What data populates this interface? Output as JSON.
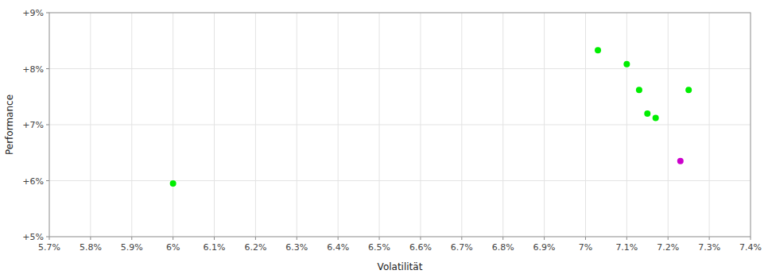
{
  "chart_data": {
    "type": "scatter",
    "x_label": "Volatilität",
    "y_label": "Performance",
    "xlim": [
      0.057,
      0.074
    ],
    "ylim": [
      0.05,
      0.09
    ],
    "xticks": [
      {
        "value": 0.057,
        "label": "5.7%"
      },
      {
        "value": 0.058,
        "label": "5.8%"
      },
      {
        "value": 0.059,
        "label": "5.9%"
      },
      {
        "value": 0.06,
        "label": "6%"
      },
      {
        "value": 0.061,
        "label": "6.1%"
      },
      {
        "value": 0.062,
        "label": "6.2%"
      },
      {
        "value": 0.063,
        "label": "6.3%"
      },
      {
        "value": 0.064,
        "label": "6.4%"
      },
      {
        "value": 0.065,
        "label": "6.5%"
      },
      {
        "value": 0.066,
        "label": "6.6%"
      },
      {
        "value": 0.067,
        "label": "6.7%"
      },
      {
        "value": 0.068,
        "label": "6.8%"
      },
      {
        "value": 0.069,
        "label": "6.9%"
      },
      {
        "value": 0.07,
        "label": "7%"
      },
      {
        "value": 0.071,
        "label": "7.1%"
      },
      {
        "value": 0.072,
        "label": "7.2%"
      },
      {
        "value": 0.073,
        "label": "7.3%"
      },
      {
        "value": 0.074,
        "label": "7.4%"
      }
    ],
    "yticks": [
      {
        "value": 0.05,
        "label": "+5%"
      },
      {
        "value": 0.06,
        "label": "+6%"
      },
      {
        "value": 0.07,
        "label": "+7%"
      },
      {
        "value": 0.08,
        "label": "+8%"
      },
      {
        "value": 0.09,
        "label": "+9%"
      }
    ],
    "grid": true,
    "series": [
      {
        "color": "#00ee00",
        "x": [
          0.06,
          0.0703,
          0.071,
          0.0713,
          0.0715,
          0.0717,
          0.0725
        ],
        "values": [
          0.0595,
          0.0833,
          0.0808,
          0.0762,
          0.072,
          0.0712,
          0.0762
        ]
      },
      {
        "color": "#cc00cc",
        "x": [
          0.0723
        ],
        "values": [
          0.0635
        ]
      }
    ]
  }
}
